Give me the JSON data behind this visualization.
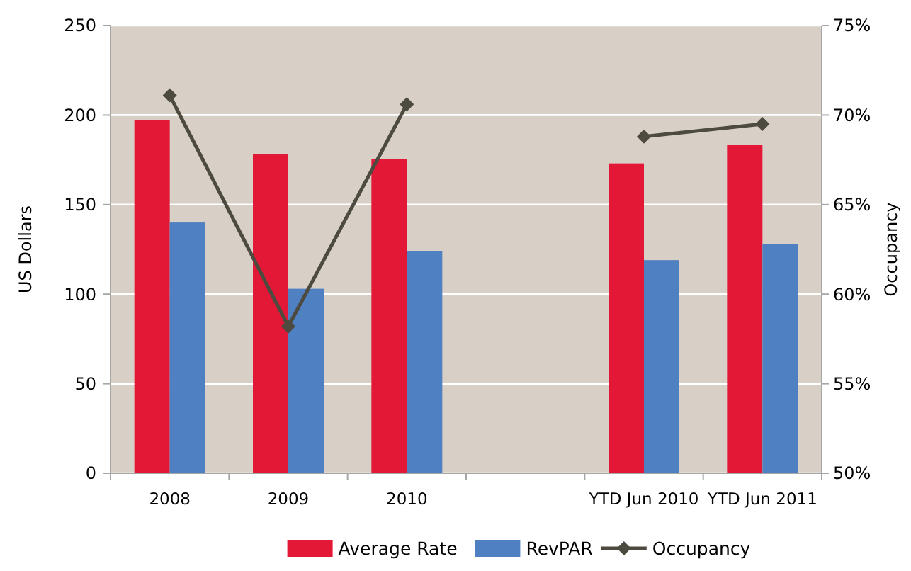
{
  "chart_data": {
    "type": "bar",
    "categories": [
      "2008",
      "2009",
      "2010",
      null,
      "YTD Jun 2010",
      "YTD Jun 2011"
    ],
    "series": [
      {
        "name": "Average Rate",
        "color": "#e31837",
        "values": [
          197,
          178,
          175.5,
          null,
          173,
          183.5
        ]
      },
      {
        "name": "RevPAR",
        "color": "#4f81c2",
        "values": [
          140,
          103,
          124,
          null,
          119,
          128
        ]
      },
      {
        "name": "Occupancy",
        "type": "line",
        "axis": "y2",
        "color": "#4d4a40",
        "marker": "diamond",
        "values": [
          71.1,
          58.2,
          70.6,
          null,
          68.8,
          69.5
        ]
      }
    ],
    "ylabel": "US Dollars",
    "y2label": "Occupancy",
    "ylim": [
      0,
      250
    ],
    "yticks": [
      0,
      50,
      100,
      150,
      200,
      250
    ],
    "y2lim": [
      50,
      75
    ],
    "y2ticks": [
      {
        "value": 50,
        "label": "50%"
      },
      {
        "value": 55,
        "label": "55%"
      },
      {
        "value": 60,
        "label": "60%"
      },
      {
        "value": 65,
        "label": "65%"
      },
      {
        "value": 70,
        "label": "70%"
      },
      {
        "value": 75,
        "label": "75%"
      }
    ],
    "grid": "y",
    "legend": "bottom"
  }
}
